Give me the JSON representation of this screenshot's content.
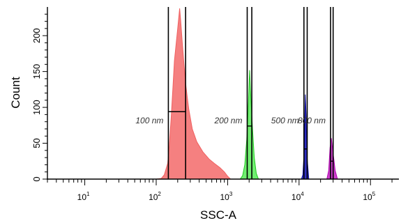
{
  "chart_data": {
    "type": "histogram",
    "xlabel": "SSC-A",
    "ylabel": "Count",
    "x_scale": "log",
    "xlim": [
      3,
      250000
    ],
    "ylim": [
      0,
      240
    ],
    "y_ticks": [
      "0",
      "50",
      "100",
      "150",
      "200"
    ],
    "x_ticks": [
      {
        "base": "10",
        "exp": "1"
      },
      {
        "base": "10",
        "exp": "2"
      },
      {
        "base": "10",
        "exp": "3"
      },
      {
        "base": "10",
        "exp": "4"
      },
      {
        "base": "10",
        "exp": "5"
      }
    ],
    "series": [
      {
        "color": "#f06060",
        "fill": "#f58080",
        "points": [
          [
            100,
            0
          ],
          [
            118,
            1
          ],
          [
            130,
            6
          ],
          [
            145,
            22
          ],
          [
            152,
            45
          ],
          [
            162,
            85
          ],
          [
            172,
            130
          ],
          [
            180,
            165
          ],
          [
            190,
            188
          ],
          [
            200,
            210
          ],
          [
            208,
            228
          ],
          [
            213,
            238
          ],
          [
            220,
            222
          ],
          [
            232,
            190
          ],
          [
            246,
            158
          ],
          [
            262,
            128
          ],
          [
            285,
            98
          ],
          [
            320,
            70
          ],
          [
            370,
            52
          ],
          [
            450,
            38
          ],
          [
            550,
            28
          ],
          [
            650,
            22
          ],
          [
            780,
            16
          ],
          [
            900,
            10
          ],
          [
            1000,
            4
          ],
          [
            1100,
            0
          ]
        ]
      },
      {
        "color": "#22c822",
        "fill": "#70ee70",
        "points": [
          [
            1500,
            0
          ],
          [
            1620,
            5
          ],
          [
            1740,
            20
          ],
          [
            1850,
            55
          ],
          [
            1960,
            108
          ],
          [
            2030,
            152
          ],
          [
            2110,
            115
          ],
          [
            2230,
            70
          ],
          [
            2360,
            30
          ],
          [
            2520,
            8
          ],
          [
            2700,
            0
          ]
        ]
      },
      {
        "color": "#1010a0",
        "fill": "#3030c0",
        "points": [
          [
            10800,
            0
          ],
          [
            11300,
            6
          ],
          [
            11800,
            40
          ],
          [
            12250,
            118
          ],
          [
            12550,
            90
          ],
          [
            13000,
            28
          ],
          [
            13700,
            0
          ]
        ]
      },
      {
        "color": "#b000b0",
        "fill": "#cc40cc",
        "points": [
          [
            24500,
            0
          ],
          [
            26000,
            12
          ],
          [
            27200,
            44
          ],
          [
            28300,
            57
          ],
          [
            29800,
            38
          ],
          [
            32000,
            12
          ],
          [
            34500,
            0
          ]
        ]
      }
    ],
    "gates": [
      {
        "label": "100 nm",
        "lo": 148,
        "hi": 258,
        "y": 94
      },
      {
        "label": "200 nm",
        "lo": 1880,
        "hi": 2180,
        "y": 74
      },
      {
        "label": "500 nm",
        "lo": 11700,
        "hi": 13000,
        "y": 42
      },
      {
        "label": "800 nm",
        "lo": 27600,
        "hi": 30000,
        "y": 25
      }
    ]
  }
}
